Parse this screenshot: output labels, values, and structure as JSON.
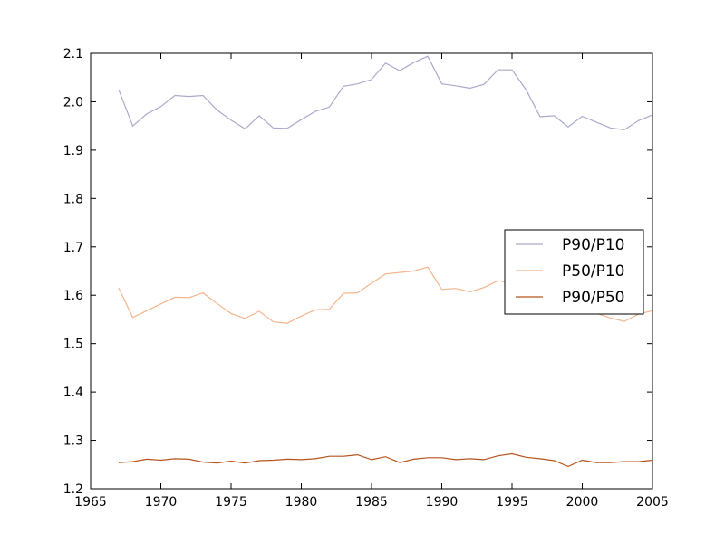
{
  "chart_data": {
    "type": "line",
    "title": "",
    "xlabel": "",
    "ylabel": "",
    "xlim": [
      1965,
      2005
    ],
    "ylim": [
      1.2,
      2.1
    ],
    "xticks": [
      1965,
      1970,
      1975,
      1980,
      1985,
      1990,
      1995,
      2000,
      2005
    ],
    "xtick_labels": [
      "1965",
      "1970",
      "1975",
      "1980",
      "1985",
      "1990",
      "1995",
      "2000",
      "2005"
    ],
    "yticks": [
      1.2,
      1.3,
      1.4,
      1.5,
      1.6,
      1.7,
      1.8,
      1.9,
      2.0,
      2.1
    ],
    "ytick_labels": [
      "1.2",
      "1.3",
      "1.4",
      "1.5",
      "1.6",
      "1.7",
      "1.8",
      "1.9",
      "2.0",
      "2.1"
    ],
    "grid": false,
    "legend_position": "center-right",
    "x": [
      1967,
      1968,
      1969,
      1970,
      1971,
      1972,
      1973,
      1974,
      1975,
      1976,
      1977,
      1978,
      1979,
      1980,
      1981,
      1982,
      1983,
      1984,
      1985,
      1986,
      1987,
      1988,
      1989,
      1990,
      1991,
      1992,
      1993,
      1994,
      1995,
      1996,
      1997,
      1998,
      1999,
      2000,
      2001,
      2002,
      2003,
      2004,
      2005
    ],
    "series": [
      {
        "name": "P90/P10",
        "color": "#aaaacc",
        "values": [
          2.025,
          1.95,
          1.975,
          1.99,
          2.013,
          2.011,
          2.013,
          1.983,
          1.962,
          1.944,
          1.971,
          1.946,
          1.945,
          1.963,
          1.98,
          1.989,
          2.032,
          2.037,
          2.046,
          2.08,
          2.064,
          2.081,
          2.094,
          2.037,
          2.033,
          2.028,
          2.036,
          2.066,
          2.066,
          2.025,
          1.969,
          1.971,
          1.948,
          1.97,
          1.958,
          1.946,
          1.942,
          1.961,
          1.973
        ]
      },
      {
        "name": "P50/P10",
        "color": "#f3b58e",
        "values": [
          1.615,
          1.554,
          1.568,
          1.582,
          1.596,
          1.595,
          1.605,
          1.583,
          1.562,
          1.552,
          1.567,
          1.545,
          1.542,
          1.557,
          1.57,
          1.571,
          1.604,
          1.605,
          1.625,
          1.644,
          1.647,
          1.65,
          1.658,
          1.612,
          1.614,
          1.607,
          1.616,
          1.63,
          1.625,
          1.604,
          1.562,
          1.567,
          1.565,
          1.566,
          1.563,
          1.553,
          1.546,
          1.561,
          1.568
        ]
      },
      {
        "name": "P90/P50",
        "color": "#b5541d",
        "values": [
          1.254,
          1.256,
          1.261,
          1.259,
          1.262,
          1.261,
          1.255,
          1.253,
          1.257,
          1.253,
          1.258,
          1.259,
          1.261,
          1.26,
          1.262,
          1.267,
          1.267,
          1.27,
          1.26,
          1.266,
          1.254,
          1.261,
          1.264,
          1.264,
          1.26,
          1.262,
          1.26,
          1.268,
          1.272,
          1.265,
          1.262,
          1.258,
          1.246,
          1.259,
          1.254,
          1.254,
          1.256,
          1.256,
          1.259
        ]
      }
    ]
  }
}
